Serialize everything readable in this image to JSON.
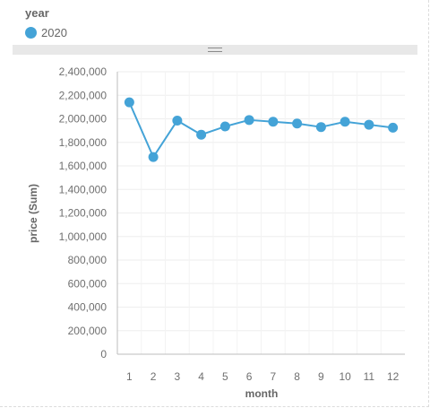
{
  "legend": {
    "title": "year",
    "items": [
      {
        "label": "2020",
        "color": "#44a3d7"
      }
    ]
  },
  "chart_data": {
    "type": "line",
    "xlabel": "month",
    "ylabel": "price (Sum)",
    "categories": [
      "1",
      "2",
      "3",
      "4",
      "5",
      "6",
      "7",
      "8",
      "9",
      "10",
      "11",
      "12"
    ],
    "series": [
      {
        "name": "2020",
        "color": "#44a3d7",
        "values": [
          2140000,
          1675000,
          1985000,
          1865000,
          1935000,
          1990000,
          1975000,
          1960000,
          1930000,
          1975000,
          1950000,
          1925000
        ]
      }
    ],
    "ylim": [
      0,
      2400000
    ],
    "yticks": [
      "0",
      "200,000",
      "400,000",
      "600,000",
      "800,000",
      "1,000,000",
      "1,200,000",
      "1,400,000",
      "1,600,000",
      "1,800,000",
      "2,000,000",
      "2,200,000",
      "2,400,000"
    ],
    "grid": true,
    "legend_position": "top-left"
  }
}
